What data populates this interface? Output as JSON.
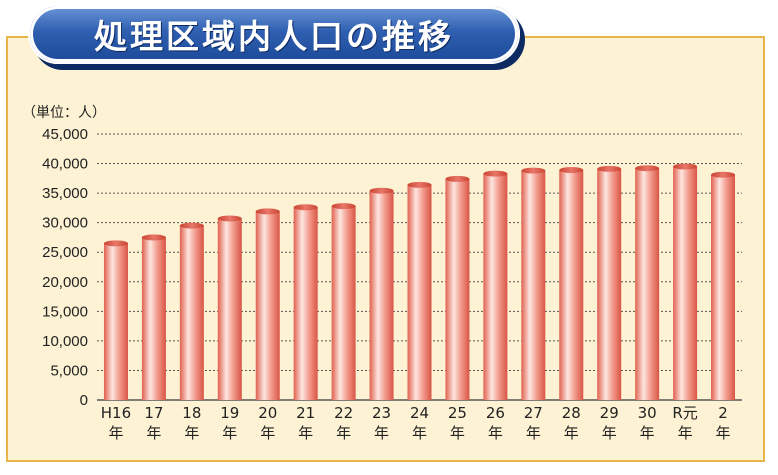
{
  "title": "処理区域内人口の推移",
  "chart_data": {
    "type": "bar",
    "unit_label": "（単位：人）",
    "categories": [
      [
        "H16",
        "年"
      ],
      [
        "17",
        "年"
      ],
      [
        "18",
        "年"
      ],
      [
        "19",
        "年"
      ],
      [
        "20",
        "年"
      ],
      [
        "21",
        "年"
      ],
      [
        "22",
        "年"
      ],
      [
        "23",
        "年"
      ],
      [
        "24",
        "年"
      ],
      [
        "25",
        "年"
      ],
      [
        "26",
        "年"
      ],
      [
        "27",
        "年"
      ],
      [
        "28",
        "年"
      ],
      [
        "29",
        "年"
      ],
      [
        "30",
        "年"
      ],
      [
        "R元",
        "年"
      ],
      [
        "2",
        "年"
      ]
    ],
    "values": [
      26500,
      27500,
      29500,
      30700,
      31900,
      32600,
      32800,
      35400,
      36400,
      37400,
      38300,
      38800,
      38900,
      39100,
      39200,
      39500,
      38100
    ],
    "ylim": [
      0,
      45000
    ],
    "yticks": [
      "0",
      "5,000",
      "10,000",
      "15,000",
      "20,000",
      "25,000",
      "30,000",
      "35,000",
      "40,000",
      "45,000"
    ],
    "ytick_values": [
      0,
      5000,
      10000,
      15000,
      20000,
      25000,
      30000,
      35000,
      40000,
      45000
    ],
    "grid": "dotted horizontal",
    "bar_color": "#e8766a",
    "bar_highlight": "#fde6e0",
    "bar_top": "#c9442f"
  }
}
